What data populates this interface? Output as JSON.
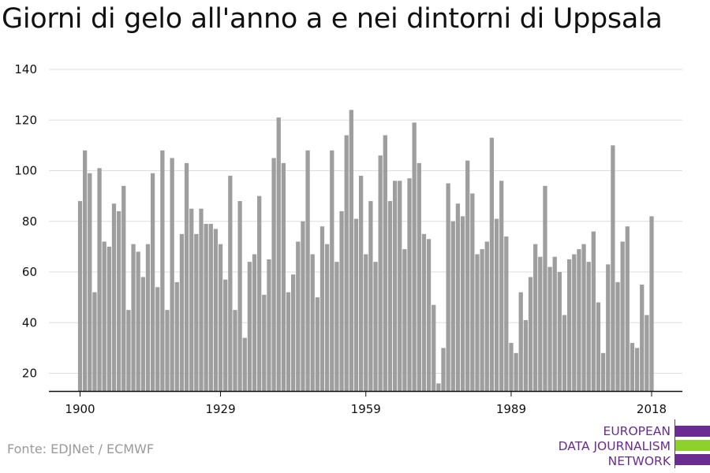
{
  "title": "Giorni di gelo all'anno a e nei dintorni di Uppsala",
  "source": "Fonte: EDJNet / ECMWF",
  "logo": {
    "lines": [
      "EUROPEAN",
      "DATA JOURNALISM",
      "NETWORK"
    ],
    "bar_colors": [
      "#6a2c91",
      "#8fd12c",
      "#6a2c91"
    ]
  },
  "colors": {
    "bar": "#9e9e9e",
    "grid": "#dddddd",
    "axis": "#111111"
  },
  "chart_data": {
    "type": "bar",
    "title": "Giorni di gelo all'anno a e nei dintorni di Uppsala",
    "xlabel": "",
    "ylabel": "",
    "ylim": [
      13,
      140
    ],
    "yticks": [
      20,
      40,
      60,
      80,
      100,
      120,
      140
    ],
    "xticks": [
      1900,
      1929,
      1959,
      1989,
      2018
    ],
    "grid": true,
    "x": [
      1900,
      1901,
      1902,
      1903,
      1904,
      1905,
      1906,
      1907,
      1908,
      1909,
      1910,
      1911,
      1912,
      1913,
      1914,
      1915,
      1916,
      1917,
      1918,
      1919,
      1920,
      1921,
      1922,
      1923,
      1924,
      1925,
      1926,
      1927,
      1928,
      1929,
      1930,
      1931,
      1932,
      1933,
      1934,
      1935,
      1936,
      1937,
      1938,
      1939,
      1940,
      1941,
      1942,
      1943,
      1944,
      1945,
      1946,
      1947,
      1948,
      1949,
      1950,
      1951,
      1952,
      1953,
      1954,
      1955,
      1956,
      1957,
      1958,
      1959,
      1960,
      1961,
      1962,
      1963,
      1964,
      1965,
      1966,
      1967,
      1968,
      1969,
      1970,
      1971,
      1972,
      1973,
      1974,
      1975,
      1976,
      1977,
      1978,
      1979,
      1980,
      1981,
      1982,
      1983,
      1984,
      1985,
      1986,
      1987,
      1988,
      1989,
      1990,
      1991,
      1992,
      1993,
      1994,
      1995,
      1996,
      1997,
      1998,
      1999,
      2000,
      2001,
      2002,
      2003,
      2004,
      2005,
      2006,
      2007,
      2008,
      2009,
      2010,
      2011,
      2012,
      2013,
      2014,
      2015,
      2016,
      2017,
      2018
    ],
    "values": [
      88,
      108,
      99,
      52,
      101,
      72,
      70,
      87,
      84,
      94,
      45,
      71,
      68,
      58,
      71,
      99,
      54,
      108,
      45,
      105,
      56,
      75,
      103,
      85,
      75,
      85,
      79,
      79,
      77,
      71,
      57,
      98,
      45,
      88,
      34,
      64,
      67,
      90,
      51,
      65,
      105,
      121,
      103,
      52,
      59,
      72,
      80,
      108,
      67,
      50,
      78,
      71,
      108,
      64,
      84,
      114,
      124,
      81,
      98,
      67,
      88,
      64,
      106,
      114,
      88,
      96,
      96,
      69,
      97,
      119,
      103,
      75,
      73,
      47,
      16,
      30,
      95,
      80,
      87,
      82,
      104,
      91,
      67,
      69,
      72,
      113,
      81,
      96,
      74,
      32,
      28,
      52,
      41,
      58,
      71,
      66,
      94,
      62,
      66,
      60,
      43,
      65,
      67,
      69,
      71,
      64,
      76,
      48,
      28,
      63,
      110,
      56,
      72,
      78,
      32,
      30,
      55,
      43,
      82
    ]
  }
}
